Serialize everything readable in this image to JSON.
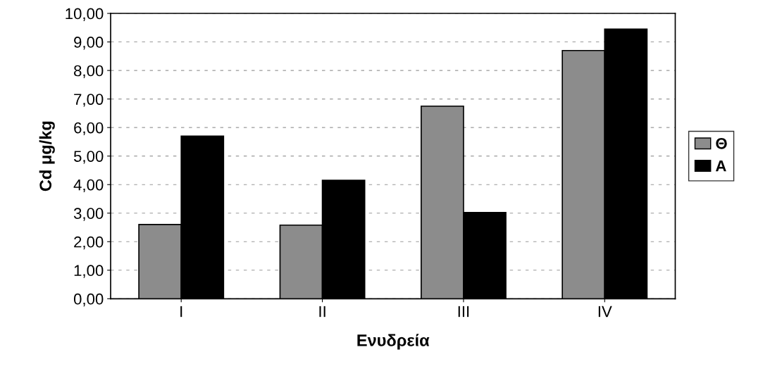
{
  "chart_data": {
    "type": "bar",
    "xlabel": "Ενυδρεία",
    "ylabel": "Cd μg/kg",
    "categories": [
      "I",
      "II",
      "III",
      "IV"
    ],
    "series": [
      {
        "name": "Θ",
        "color": "#8c8c8c",
        "values": [
          2.6,
          2.58,
          6.75,
          8.7
        ]
      },
      {
        "name": "A",
        "color": "#000000",
        "values": [
          5.7,
          4.15,
          3.02,
          9.45
        ]
      }
    ],
    "ylim": [
      0,
      10
    ],
    "yticks": [
      {
        "value": 0,
        "label": "0,00"
      },
      {
        "value": 1,
        "label": "1,00"
      },
      {
        "value": 2,
        "label": "2,00"
      },
      {
        "value": 3,
        "label": "3,00"
      },
      {
        "value": 4,
        "label": "4,00"
      },
      {
        "value": 5,
        "label": "5,00"
      },
      {
        "value": 6,
        "label": "6,00"
      },
      {
        "value": 7,
        "label": "7,00"
      },
      {
        "value": 8,
        "label": "8,00"
      },
      {
        "value": 9,
        "label": "9,00"
      },
      {
        "value": 10,
        "label": "10,00"
      }
    ],
    "grid": "y",
    "legend": "right"
  }
}
